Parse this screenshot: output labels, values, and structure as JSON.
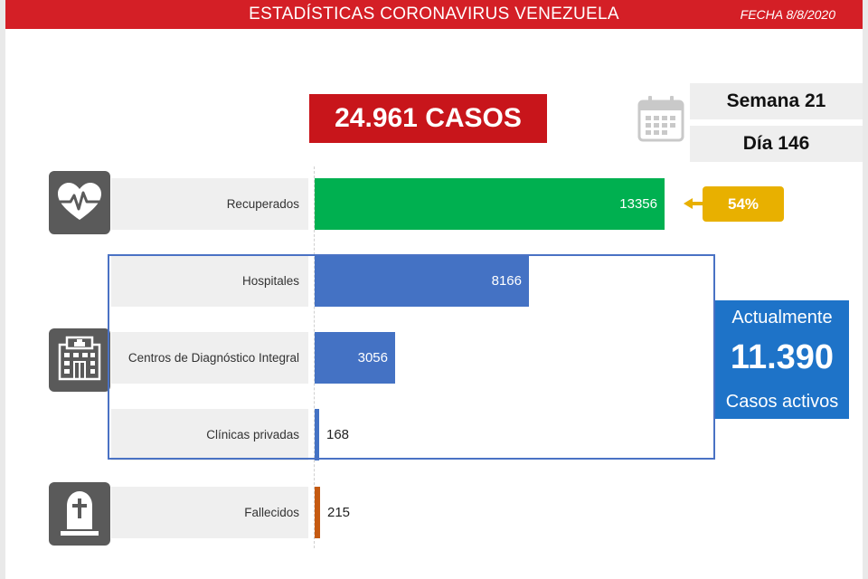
{
  "header": {
    "title": "ESTADÍSTICAS CORONAVIRUS VENEZUELA",
    "date": "FECHA 8/8/2020"
  },
  "total_cases": "24.961 CASOS",
  "week": "Semana 21",
  "day": "Día 146",
  "recovered_percent": "54%",
  "active": {
    "line1": "Actualmente",
    "value": "11.390",
    "line3": "Casos activos"
  },
  "icons": {
    "calendar": "calendar-icon",
    "recovered": "heart-pulse-icon",
    "hospital": "hospital-building-icon",
    "deceased": "tombstone-cross-icon"
  },
  "colors": {
    "header": "#d41f26",
    "cases": "#c8151b",
    "recovered": "#00b050",
    "hospitalized": "#4472c4",
    "deceased": "#c55a11",
    "percent": "#e8b000",
    "active": "#1e73c8"
  },
  "chart_data": {
    "type": "bar",
    "orientation": "horizontal",
    "title": "",
    "categories": [
      "Recuperados",
      "Hospitales",
      "Centros de Diagnóstico Integral",
      "Clínicas privadas",
      "Fallecidos"
    ],
    "values": [
      13356,
      8166,
      3056,
      168,
      215
    ],
    "value_labels": [
      "13356",
      "8166",
      "3056",
      "168",
      "215"
    ],
    "bar_colors": [
      "#00b050",
      "#4472c4",
      "#4472c4",
      "#4472c4",
      "#c55a11"
    ],
    "xlim": [
      0,
      13356
    ],
    "grid": false,
    "legend": "none"
  }
}
